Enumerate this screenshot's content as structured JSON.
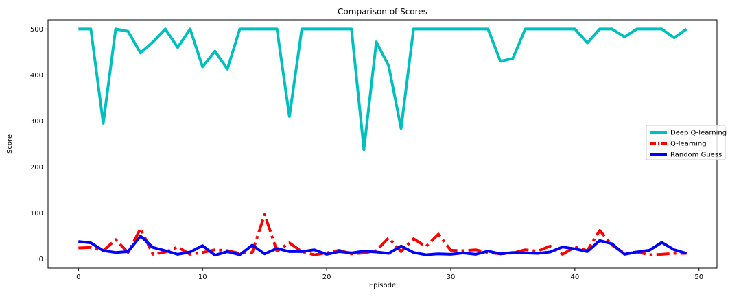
{
  "chart_data": {
    "type": "line",
    "title": "Comparison of Scores",
    "xlabel": "Episode",
    "ylabel": "Score",
    "xlim": [
      -2.45,
      51.45
    ],
    "ylim": [
      -20,
      520
    ],
    "xticks": [
      0,
      10,
      20,
      30,
      40,
      50
    ],
    "yticks": [
      0,
      100,
      200,
      300,
      400,
      500
    ],
    "grid": false,
    "legend_position": "center-right",
    "x": [
      0,
      1,
      2,
      3,
      4,
      5,
      6,
      7,
      8,
      9,
      10,
      11,
      12,
      13,
      14,
      15,
      16,
      17,
      18,
      19,
      20,
      21,
      22,
      23,
      24,
      25,
      26,
      27,
      28,
      29,
      30,
      31,
      32,
      33,
      34,
      35,
      36,
      37,
      38,
      39,
      40,
      41,
      42,
      43,
      44,
      45,
      46,
      47,
      48,
      49
    ],
    "series": [
      {
        "name": "Deep Q-learning",
        "color": "#00bfbf",
        "style": "solid",
        "values": [
          500,
          500,
          295,
          500,
          495,
          448,
          472,
          500,
          460,
          500,
          418,
          452,
          413,
          500,
          500,
          500,
          500,
          310,
          500,
          500,
          500,
          500,
          500,
          238,
          472,
          420,
          284,
          500,
          500,
          500,
          500,
          500,
          500,
          500,
          430,
          436,
          500,
          500,
          500,
          500,
          500,
          470,
          500,
          500,
          483,
          500,
          500,
          500,
          481,
          500
        ]
      },
      {
        "name": "Q-learning",
        "color": "#ff0000",
        "style": "dashdot",
        "values": [
          24,
          25,
          18,
          42,
          14,
          66,
          10,
          15,
          26,
          10,
          14,
          20,
          18,
          12,
          14,
          97,
          17,
          35,
          16,
          9,
          13,
          19,
          11,
          13,
          18,
          46,
          16,
          44,
          27,
          54,
          19,
          18,
          20,
          14,
          11,
          13,
          20,
          17,
          28,
          10,
          26,
          18,
          62,
          30,
          12,
          15,
          9,
          10,
          12,
          12
        ]
      },
      {
        "name": "Random Guess",
        "color": "#0000ff",
        "style": "solid",
        "values": [
          38,
          35,
          18,
          14,
          16,
          50,
          25,
          18,
          10,
          15,
          29,
          8,
          16,
          9,
          30,
          11,
          23,
          16,
          16,
          20,
          10,
          16,
          13,
          17,
          15,
          12,
          28,
          14,
          9,
          11,
          10,
          13,
          10,
          17,
          11,
          14,
          13,
          12,
          15,
          26,
          22,
          16,
          40,
          33,
          10,
          15,
          19,
          36,
          20,
          12
        ]
      }
    ]
  }
}
